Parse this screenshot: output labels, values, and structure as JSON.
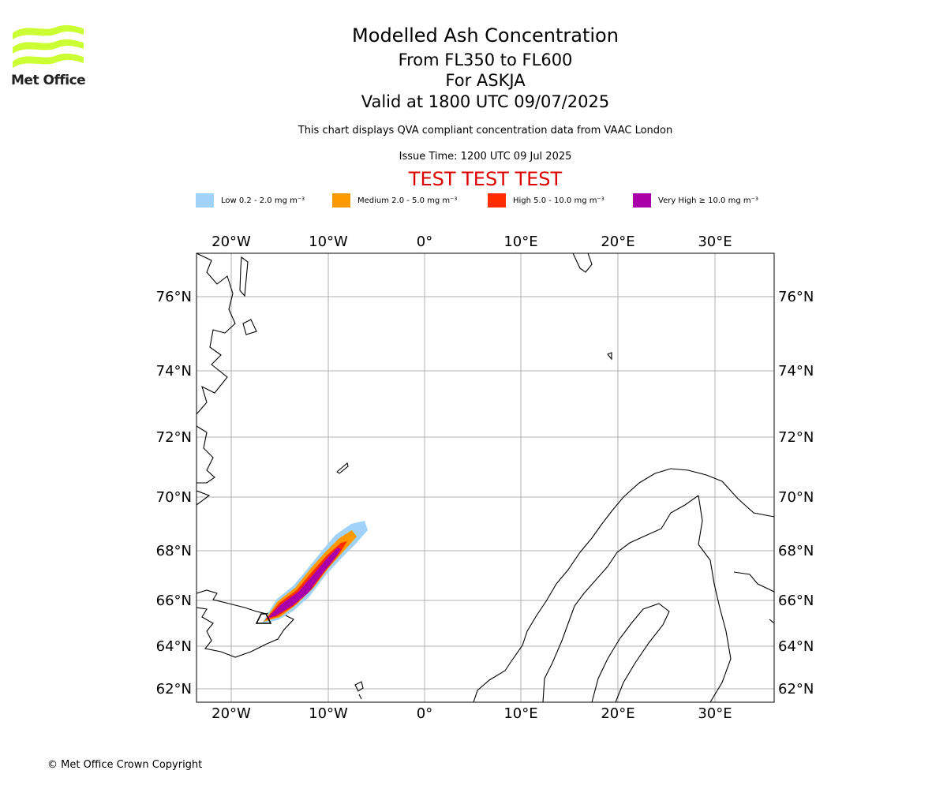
{
  "header": {
    "title": "Modelled Ash Concentration",
    "levels": "From FL350 to FL600",
    "volcano": "For ASKJA",
    "valid": "Valid at 1800 UTC 09/07/2025",
    "subtitle": "This chart displays QVA compliant concentration data from VAAC London",
    "issue": "Issue Time: 1200 UTC 09 Jul 2025",
    "test": "TEST TEST TEST"
  },
  "logo": {
    "text": "Met Office",
    "color": "#ccff33"
  },
  "legend": [
    {
      "label": "Low 0.2 - 2.0 mg m⁻³",
      "color": "#a0d2fa"
    },
    {
      "label": "Medium 2.0 - 5.0 mg m⁻³",
      "color": "#ff9900"
    },
    {
      "label": "High 5.0 - 10.0 mg m⁻³",
      "color": "#ff2d00"
    },
    {
      "label": "Very High ≥ 10.0 mg m⁻³",
      "color": "#aa00aa"
    }
  ],
  "map": {
    "lon_labels": [
      "20°W",
      "10°W",
      "0°",
      "10°E",
      "20°E",
      "30°E"
    ],
    "lat_labels": [
      "76°N",
      "74°N",
      "72°N",
      "70°N",
      "68°N",
      "66°N",
      "64°N",
      "62°N"
    ],
    "grid": true
  },
  "footer": {
    "copyright": "© Met Office Crown Copyright"
  }
}
